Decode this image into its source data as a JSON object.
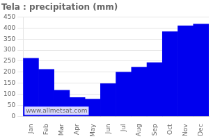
{
  "chart_data": {
    "type": "bar",
    "title": "Tela : precipitation (mm)",
    "categories": [
      "Jan",
      "Feb",
      "Mar",
      "Apr",
      "May",
      "Jun",
      "Jul",
      "Aug",
      "Sep",
      "Oct",
      "Nov",
      "Dec"
    ],
    "values": [
      263,
      213,
      118,
      85,
      78,
      148,
      200,
      223,
      243,
      383,
      410,
      418
    ],
    "color": "#0000ee",
    "ylim": [
      0,
      450
    ],
    "yticks": [
      0,
      50,
      100,
      150,
      200,
      250,
      300,
      350,
      400,
      450
    ],
    "grid": true,
    "annotation": "www.allmetsat.com"
  }
}
